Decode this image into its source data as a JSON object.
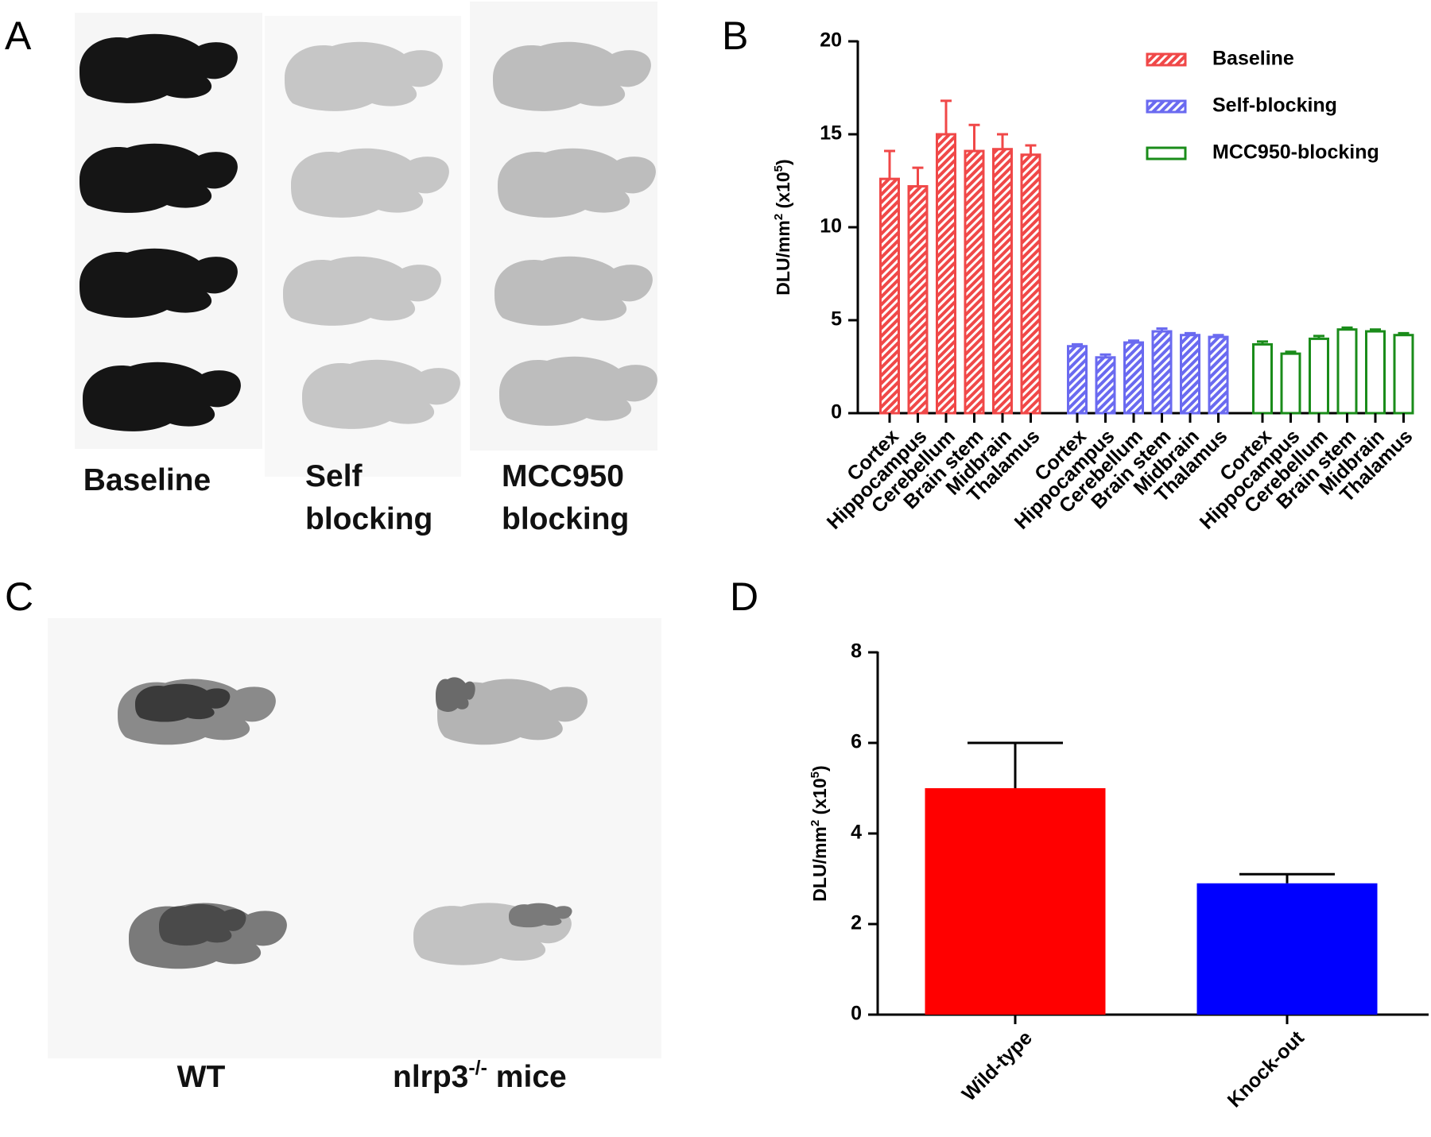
{
  "panel_labels": [
    "A",
    "B",
    "C",
    "D"
  ],
  "panel_a": {
    "captions": [
      [
        "Baseline"
      ],
      [
        "Self",
        "blocking"
      ],
      [
        "MCC950",
        "blocking"
      ]
    ]
  },
  "panel_c": {
    "captions": [
      [
        "WT"
      ],
      [
        "nlrp3",
        "-/-",
        " mice"
      ]
    ]
  },
  "chart_data": [
    {
      "type": "bar",
      "ylabel": [
        "DLU/mm",
        "2",
        " (x10",
        "5",
        ")"
      ],
      "categories": [
        "Cortex",
        "Hippocampus",
        "Cerebellum",
        "Brain stem",
        "Midbrain",
        "Thalamus"
      ],
      "series": [
        {
          "name": "Baseline",
          "color": "#f04848",
          "hatched": true,
          "values": [
            12.6,
            12.2,
            15.0,
            14.1,
            14.2,
            13.9
          ],
          "errors": [
            1.5,
            1.0,
            1.8,
            1.4,
            0.8,
            0.5
          ]
        },
        {
          "name": "Self-blocking",
          "color": "#6a6af0",
          "hatched": true,
          "values": [
            3.6,
            3.0,
            3.8,
            4.4,
            4.2,
            4.1
          ],
          "errors": [
            0.1,
            0.15,
            0.1,
            0.15,
            0.1,
            0.1
          ]
        },
        {
          "name": "MCC950-blocking",
          "color": "#1a8c1a",
          "hatched": false,
          "values": [
            3.7,
            3.2,
            4.0,
            4.5,
            4.4,
            4.2
          ],
          "errors": [
            0.15,
            0.1,
            0.15,
            0.1,
            0.1,
            0.1
          ]
        }
      ],
      "ylim": [
        0,
        20
      ],
      "yticks": [
        0,
        5,
        10,
        15,
        20
      ],
      "legend": "top-right"
    },
    {
      "type": "bar",
      "ylabel": [
        "DLU/mm",
        "2",
        " (x10",
        "5",
        ")"
      ],
      "categories": [
        "Wild-type",
        "Knock-out"
      ],
      "values": [
        5.0,
        2.9
      ],
      "errors": [
        1.0,
        0.2
      ],
      "colors": [
        "#ff0000",
        "#0000ff"
      ],
      "ylim": [
        0,
        8
      ],
      "yticks": [
        0,
        2,
        4,
        6,
        8
      ]
    }
  ]
}
